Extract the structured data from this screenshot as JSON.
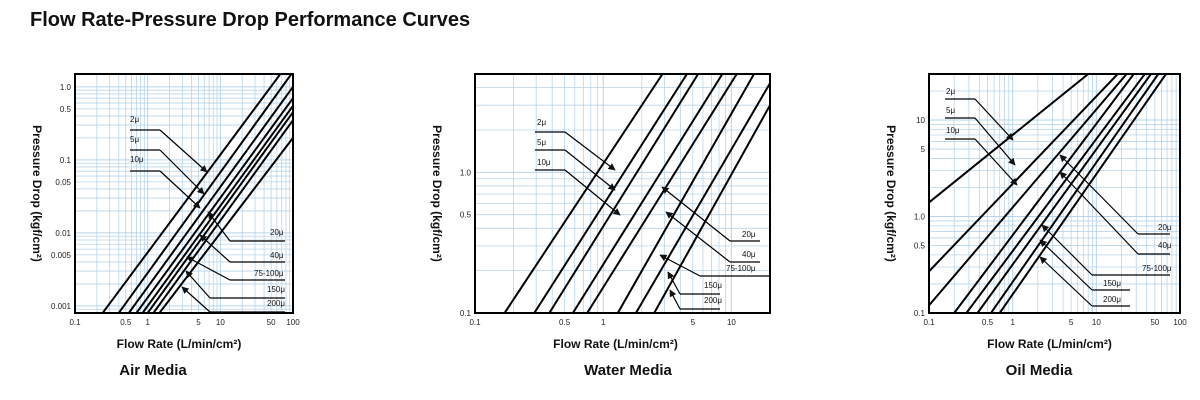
{
  "page": {
    "title": "Flow Rate-Pressure Drop Performance Curves"
  },
  "chart_data": [
    {
      "caption": "Air Media",
      "type": "line",
      "scale": "log-log",
      "grid": true,
      "xlabel": "Flow Rate (L/min/cm²)",
      "ylabel": "Pressure Drop (kgf/cm²)",
      "xlim": [
        0.1,
        100
      ],
      "ylim": [
        0.0008,
        1.5
      ],
      "x_ticks": [
        "0.1",
        "0.5",
        "1",
        "5",
        "10",
        "50",
        "100"
      ],
      "y_ticks": [
        "0.001",
        "0.005",
        "0.01",
        "0.05",
        "0.1",
        "0.5",
        "1.0"
      ],
      "series": [
        {
          "name": "2μ",
          "points": [
            [
              0.24,
              0.0008
            ],
            [
              67,
              1.5
            ]
          ]
        },
        {
          "name": "5μ",
          "points": [
            [
              0.4,
              0.0008
            ],
            [
              95,
              1.5
            ]
          ]
        },
        {
          "name": "10μ",
          "points": [
            [
              0.55,
              0.0008
            ],
            [
              100,
              1.0
            ]
          ]
        },
        {
          "name": "20μ",
          "points": [
            [
              0.7,
              0.0008
            ],
            [
              100,
              0.7
            ]
          ]
        },
        {
          "name": "40μ",
          "points": [
            [
              0.85,
              0.0008
            ],
            [
              100,
              0.55
            ]
          ]
        },
        {
          "name": "75-100μ",
          "points": [
            [
              1.0,
              0.0008
            ],
            [
              100,
              0.45
            ]
          ]
        },
        {
          "name": "150μ",
          "points": [
            [
              1.2,
              0.0008
            ],
            [
              100,
              0.35
            ]
          ]
        },
        {
          "name": "200μ",
          "points": [
            [
              1.45,
              0.0008
            ],
            [
              100,
              0.2
            ]
          ]
        }
      ]
    },
    {
      "caption": "Water Media",
      "type": "line",
      "scale": "log-log",
      "grid": true,
      "xlabel": "Flow Rate (L/min/cm²)",
      "ylabel": "Pressure Drop (kgf/cm²)",
      "xlim": [
        0.1,
        20
      ],
      "ylim": [
        0.1,
        5
      ],
      "x_ticks": [
        "0.1",
        "0.5",
        "1",
        "5",
        "10"
      ],
      "y_ticks": [
        "0.1",
        "0.5",
        "1.0"
      ],
      "series": [
        {
          "name": "2μ",
          "points": [
            [
              0.17,
              0.1
            ],
            [
              2.9,
              5
            ]
          ]
        },
        {
          "name": "5μ",
          "points": [
            [
              0.29,
              0.1
            ],
            [
              4.5,
              5
            ]
          ]
        },
        {
          "name": "10μ",
          "points": [
            [
              0.38,
              0.1
            ],
            [
              5.5,
              5
            ]
          ]
        },
        {
          "name": "20μ",
          "points": [
            [
              0.58,
              0.1
            ],
            [
              8.5,
              5
            ]
          ]
        },
        {
          "name": "40μ",
          "points": [
            [
              0.75,
              0.1
            ],
            [
              11,
              5
            ]
          ]
        },
        {
          "name": "75-100μ",
          "points": [
            [
              1.3,
              0.1
            ],
            [
              15,
              5
            ]
          ]
        },
        {
          "name": "150μ",
          "points": [
            [
              1.8,
              0.1
            ],
            [
              20,
              4.3
            ]
          ]
        },
        {
          "name": "200μ",
          "points": [
            [
              2.5,
              0.1
            ],
            [
              20,
              3.0
            ]
          ]
        }
      ]
    },
    {
      "caption": "Oil Media",
      "type": "line",
      "scale": "log-log",
      "grid": true,
      "xlabel": "Flow Rate (L/min/cm²)",
      "ylabel": "Pressure Drop (kgf/cm²)",
      "xlim": [
        0.1,
        100
      ],
      "ylim": [
        0.1,
        30
      ],
      "x_ticks": [
        "0.1",
        "0.5",
        "1",
        "5",
        "10",
        "50",
        "100"
      ],
      "y_ticks": [
        "0.1",
        "0.5",
        "1.0",
        "5",
        "10"
      ],
      "series": [
        {
          "name": "2μ",
          "points": [
            [
              0.1,
              1.4
            ],
            [
              8,
              30
            ]
          ]
        },
        {
          "name": "5μ",
          "points": [
            [
              0.1,
              0.27
            ],
            [
              18,
              30
            ]
          ]
        },
        {
          "name": "10μ",
          "points": [
            [
              0.1,
              0.12
            ],
            [
              23,
              30
            ]
          ]
        },
        {
          "name": "20μ",
          "points": [
            [
              0.2,
              0.1
            ],
            [
              28,
              30
            ]
          ]
        },
        {
          "name": "40μ",
          "points": [
            [
              0.28,
              0.1
            ],
            [
              38,
              30
            ]
          ]
        },
        {
          "name": "75-100μ",
          "points": [
            [
              0.38,
              0.1
            ],
            [
              45,
              30
            ]
          ]
        },
        {
          "name": "150μ",
          "points": [
            [
              0.55,
              0.1
            ],
            [
              55,
              30
            ]
          ]
        },
        {
          "name": "200μ",
          "points": [
            [
              0.7,
              0.1
            ],
            [
              68,
              30
            ]
          ]
        }
      ]
    }
  ]
}
